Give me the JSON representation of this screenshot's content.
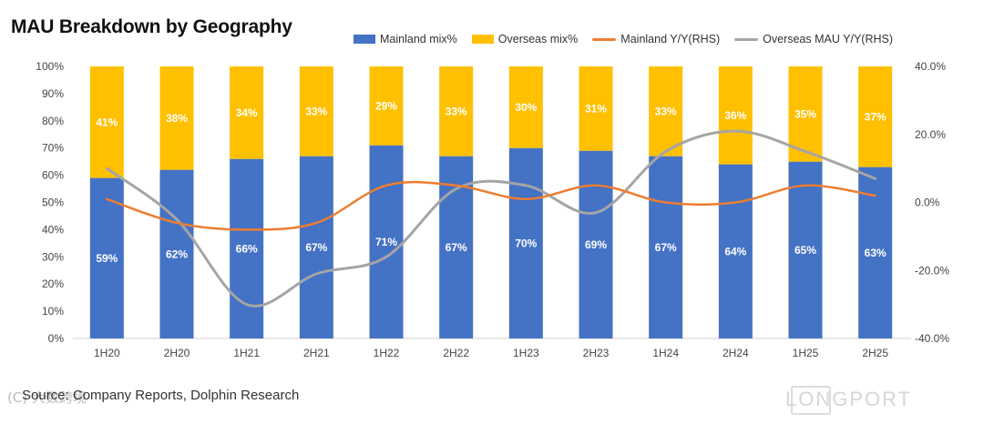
{
  "title": "MAU Breakdown by Geography",
  "source": "Source: Company Reports, Dolphin Research",
  "watermark_bottom": "(C) 大数跨境",
  "watermark_right": "LONGPORT",
  "colors": {
    "mainland": "#4472C4",
    "overseas": "#FFC000",
    "mainland_yoy": "#ED7D31",
    "overseas_yoy": "#A5A5A5"
  },
  "chart_data": {
    "type": "bar",
    "stacked": true,
    "title": "MAU Breakdown by Geography",
    "categories": [
      "1H20",
      "2H20",
      "1H21",
      "2H21",
      "1H22",
      "2H22",
      "1H23",
      "2H23",
      "1H24",
      "2H24",
      "1H25",
      "2H25"
    ],
    "series": [
      {
        "name": "Mainland mix%",
        "axis": "left",
        "kind": "bar",
        "values": [
          59,
          62,
          66,
          67,
          71,
          67,
          70,
          69,
          67,
          64,
          65,
          63
        ],
        "labels": [
          "59%",
          "62%",
          "66%",
          "67%",
          "71%",
          "67%",
          "70%",
          "69%",
          "67%",
          "64%",
          "65%",
          "63%"
        ]
      },
      {
        "name": "Overseas mix%",
        "axis": "left",
        "kind": "bar",
        "values": [
          41,
          38,
          34,
          33,
          29,
          33,
          30,
          31,
          33,
          36,
          35,
          37
        ],
        "labels": [
          "41%",
          "38%",
          "34%",
          "33%",
          "29%",
          "33%",
          "30%",
          "31%",
          "33%",
          "36%",
          "35%",
          "37%"
        ]
      },
      {
        "name": "Mainland Y/Y(RHS)",
        "axis": "right",
        "kind": "line",
        "values": [
          1,
          -6,
          -8,
          -6,
          5,
          5,
          1,
          5,
          0,
          0,
          5,
          2
        ]
      },
      {
        "name": "Overseas MAU Y/Y(RHS)",
        "axis": "right",
        "kind": "line",
        "values": [
          10,
          -5,
          -30,
          -21,
          -16,
          4,
          5,
          -3,
          15,
          21,
          15,
          7
        ]
      }
    ],
    "y_left": {
      "min": 0,
      "max": 100,
      "step": 10,
      "ticks": [
        "0%",
        "10%",
        "20%",
        "30%",
        "40%",
        "50%",
        "60%",
        "70%",
        "80%",
        "90%",
        "100%"
      ]
    },
    "y_right": {
      "min": -40,
      "max": 40,
      "step": 20,
      "ticks": [
        "-40.0%",
        "-20.0%",
        "0.0%",
        "20.0%",
        "40.0%"
      ]
    },
    "legend": "top-right",
    "grid": false
  }
}
